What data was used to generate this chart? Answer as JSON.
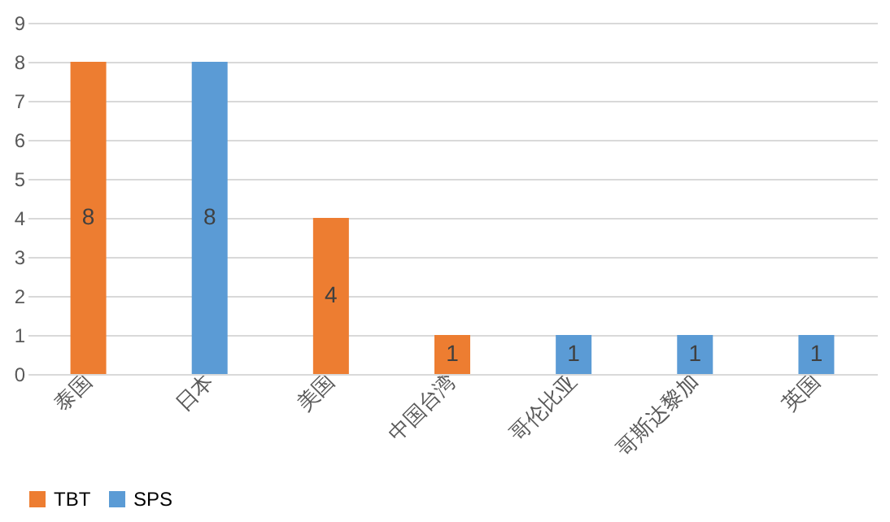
{
  "chart_data": {
    "type": "bar",
    "categories": [
      "泰国",
      "日本",
      "美国",
      "中国台湾",
      "哥伦比亚",
      "哥斯达黎加",
      "英国"
    ],
    "series": [
      {
        "name": "TBT",
        "color": "#ed7d31",
        "values": [
          8,
          null,
          4,
          1,
          null,
          null,
          null
        ]
      },
      {
        "name": "SPS",
        "color": "#5b9bd5",
        "values": [
          null,
          8,
          null,
          null,
          1,
          1,
          1
        ]
      }
    ],
    "ylim": [
      0,
      9
    ],
    "yticks": [
      0,
      1,
      2,
      3,
      4,
      5,
      6,
      7,
      8,
      9
    ],
    "grid": "y",
    "legend": "bottom",
    "data_labels": true
  }
}
